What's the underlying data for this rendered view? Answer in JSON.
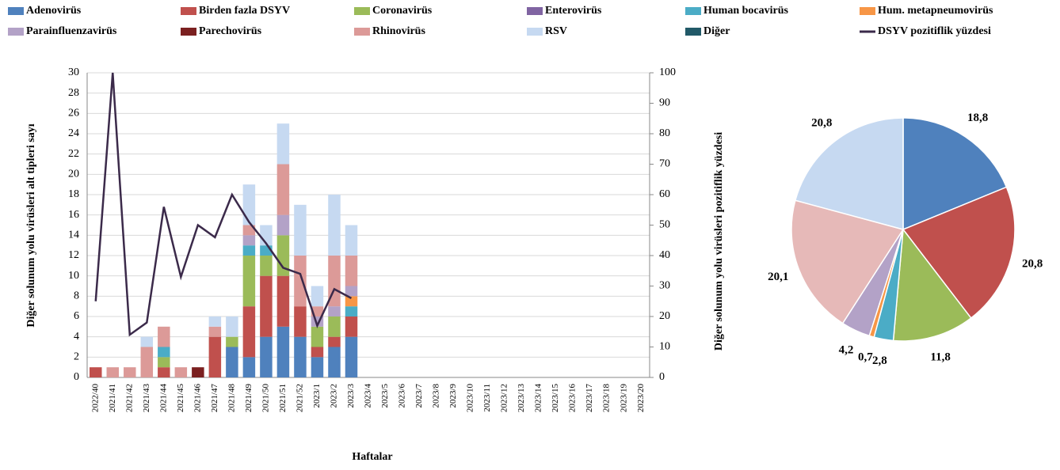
{
  "chart_data": [
    {
      "type": "bar",
      "stacked": true,
      "y_label": "Diğer solunum yolu virüsleri alt tipleri sayı",
      "y2_label": "Diğer solunum yolu virüsleri pozitiflik yüzdesi",
      "x_label": "Haftalar",
      "categories": [
        "2022/40",
        "2021/41",
        "2021/42",
        "2021/43",
        "2021/44",
        "2021/45",
        "2021/46",
        "2021/47",
        "2021/48",
        "2021/49",
        "2021/50",
        "2021/51",
        "2021/52",
        "2023/1",
        "2023/2",
        "2023/3",
        "2023/4",
        "2023/5",
        "2023/6",
        "2023/7",
        "2023/8",
        "2023/9",
        "2023/10",
        "2023/11",
        "2023/12",
        "2023/13",
        "2023/14",
        "2023/15",
        "2023/16",
        "2023/17",
        "2023/18",
        "2023/19",
        "2023/20"
      ],
      "ylim": [
        0,
        30
      ],
      "yticks": [
        0,
        2,
        4,
        6,
        8,
        10,
        12,
        14,
        16,
        18,
        20,
        22,
        24,
        26,
        28,
        30
      ],
      "y2lim": [
        0,
        100
      ],
      "y2ticks": [
        0,
        10,
        20,
        30,
        40,
        50,
        60,
        70,
        80,
        90,
        100
      ],
      "series": [
        {
          "name": "Adenovirüs",
          "color": "#4f81bd",
          "values": [
            0,
            0,
            0,
            0,
            0,
            0,
            0,
            0,
            3,
            2,
            4,
            5,
            4,
            2,
            3,
            4,
            null,
            null,
            null,
            null,
            null,
            null,
            null,
            null,
            null,
            null,
            null,
            null,
            null,
            null,
            null,
            null,
            null
          ]
        },
        {
          "name": "Birden fazla DSYV",
          "color": "#c0504d",
          "values": [
            1,
            0,
            0,
            0,
            1,
            0,
            0,
            4,
            0,
            5,
            6,
            5,
            3,
            1,
            1,
            2,
            null,
            null,
            null,
            null,
            null,
            null,
            null,
            null,
            null,
            null,
            null,
            null,
            null,
            null,
            null,
            null,
            null
          ]
        },
        {
          "name": "Coronavirüs",
          "color": "#9bbb59",
          "values": [
            0,
            0,
            0,
            0,
            1,
            0,
            0,
            0,
            1,
            5,
            2,
            4,
            0,
            2,
            2,
            0,
            null,
            null,
            null,
            null,
            null,
            null,
            null,
            null,
            null,
            null,
            null,
            null,
            null,
            null,
            null,
            null,
            null
          ]
        },
        {
          "name": "Enterovirüs",
          "color": "#8064a2",
          "values": [
            0,
            0,
            0,
            0,
            0,
            0,
            0,
            0,
            0,
            0,
            0,
            0,
            0,
            0,
            0,
            0,
            null,
            null,
            null,
            null,
            null,
            null,
            null,
            null,
            null,
            null,
            null,
            null,
            null,
            null,
            null,
            null,
            null
          ]
        },
        {
          "name": "Human bocavirüs",
          "color": "#4bacc6",
          "values": [
            0,
            0,
            0,
            0,
            1,
            0,
            0,
            0,
            0,
            1,
            1,
            0,
            0,
            0,
            0,
            1,
            null,
            null,
            null,
            null,
            null,
            null,
            null,
            null,
            null,
            null,
            null,
            null,
            null,
            null,
            null,
            null,
            null
          ]
        },
        {
          "name": "Hum. metapneumovirüs",
          "color": "#f79646",
          "values": [
            0,
            0,
            0,
            0,
            0,
            0,
            0,
            0,
            0,
            0,
            0,
            0,
            0,
            0,
            0,
            1,
            null,
            null,
            null,
            null,
            null,
            null,
            null,
            null,
            null,
            null,
            null,
            null,
            null,
            null,
            null,
            null,
            null
          ]
        },
        {
          "name": "Parainfluenzavirüs",
          "color": "#b3a2c7",
          "values": [
            0,
            0,
            0,
            0,
            0,
            0,
            0,
            0,
            0,
            1,
            0,
            2,
            0,
            1,
            1,
            1,
            null,
            null,
            null,
            null,
            null,
            null,
            null,
            null,
            null,
            null,
            null,
            null,
            null,
            null,
            null,
            null,
            null
          ]
        },
        {
          "name": "Parechovirüs",
          "color": "#7b2020",
          "values": [
            0,
            0,
            0,
            0,
            0,
            0,
            1,
            0,
            0,
            0,
            0,
            0,
            0,
            0,
            0,
            0,
            null,
            null,
            null,
            null,
            null,
            null,
            null,
            null,
            null,
            null,
            null,
            null,
            null,
            null,
            null,
            null,
            null
          ]
        },
        {
          "name": "Rhinovirüs",
          "color": "#dc9a98",
          "values": [
            0,
            1,
            1,
            3,
            2,
            1,
            0,
            1,
            0,
            1,
            0,
            5,
            5,
            1,
            5,
            3,
            null,
            null,
            null,
            null,
            null,
            null,
            null,
            null,
            null,
            null,
            null,
            null,
            null,
            null,
            null,
            null,
            null
          ]
        },
        {
          "name": "RSV",
          "color": "#c6d9f1",
          "values": [
            0,
            0,
            0,
            1,
            0,
            0,
            0,
            1,
            2,
            4,
            2,
            4,
            5,
            2,
            6,
            3,
            null,
            null,
            null,
            null,
            null,
            null,
            null,
            null,
            null,
            null,
            null,
            null,
            null,
            null,
            null,
            null,
            null
          ]
        },
        {
          "name": "Diğer",
          "color": "#215968",
          "values": [
            0,
            0,
            0,
            0,
            0,
            0,
            0,
            0,
            0,
            0,
            0,
            0,
            0,
            0,
            0,
            0,
            null,
            null,
            null,
            null,
            null,
            null,
            null,
            null,
            null,
            null,
            null,
            null,
            null,
            null,
            null,
            null,
            null
          ]
        },
        {
          "name": "DSYV pozitiflik yüzdesi",
          "type": "line",
          "axis": "y2",
          "color": "#3b2a4a",
          "values": [
            25,
            100,
            14,
            18,
            56,
            33,
            50,
            46,
            60,
            51,
            44,
            36,
            34,
            17,
            29,
            26,
            null,
            null,
            null,
            null,
            null,
            null,
            null,
            null,
            null,
            null,
            null,
            null,
            null,
            null,
            null,
            null,
            null
          ]
        }
      ]
    },
    {
      "type": "pie",
      "values": [
        18.8,
        20.8,
        11.8,
        2.8,
        0.7,
        4.2,
        20.1,
        20.8
      ],
      "value_labels": [
        "18,8",
        "20,8",
        "11,8",
        "2,8",
        "0,7",
        "4,2",
        "20,1",
        "20,8"
      ],
      "colors": [
        "#4f81bd",
        "#c0504d",
        "#9bbb59",
        "#4bacc6",
        "#f79646",
        "#b3a2c7",
        "#e6b9b8",
        "#c6d9f1"
      ]
    }
  ]
}
